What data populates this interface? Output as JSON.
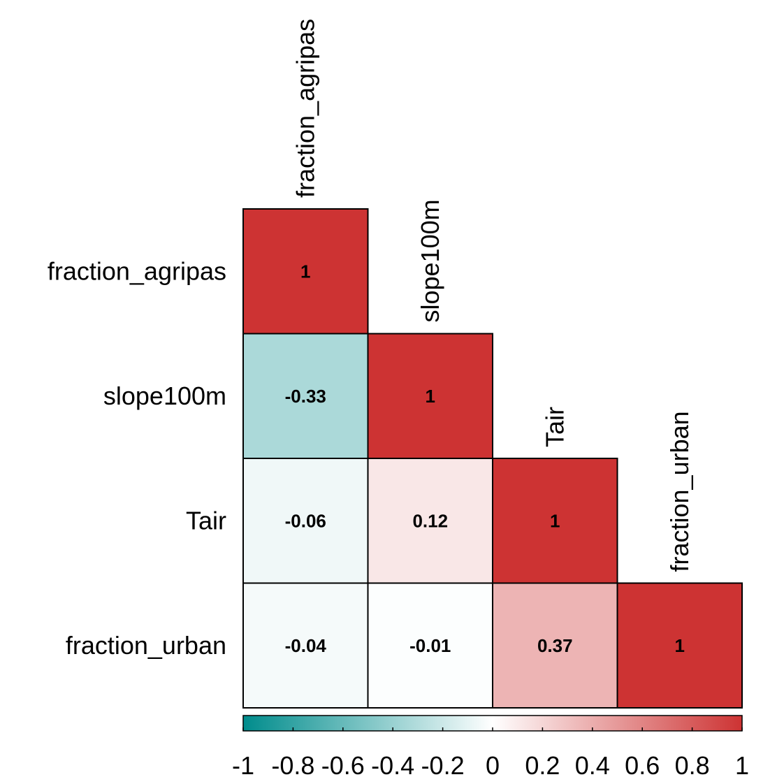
{
  "chart_data": {
    "type": "heatmap",
    "variables": [
      "fraction_agripas",
      "slope100m",
      "Tair",
      "fraction_urban"
    ],
    "matrix": [
      [
        1,
        null,
        null,
        null
      ],
      [
        -0.33,
        1,
        null,
        null
      ],
      [
        -0.06,
        0.12,
        1,
        null
      ],
      [
        -0.04,
        -0.01,
        0.37,
        1
      ]
    ],
    "value_labels": [
      [
        "1",
        "",
        "",
        ""
      ],
      [
        "-0.33",
        "1",
        "",
        ""
      ],
      [
        "-0.06",
        "0.12",
        "1",
        ""
      ],
      [
        "-0.04",
        "-0.01",
        "0.37",
        "1"
      ]
    ],
    "triangle": "lower",
    "colorbar": {
      "range": [
        -1,
        1
      ],
      "ticks": [
        -1,
        -0.8,
        -0.6,
        -0.4,
        -0.2,
        0,
        0.2,
        0.4,
        0.6,
        0.8,
        1
      ],
      "tick_labels": [
        "-1",
        "-0.8",
        "-0.6",
        "-0.4",
        "-0.2",
        "0",
        "0.2",
        "0.4",
        "0.6",
        "0.8",
        "1"
      ],
      "low_color": "#008C8C",
      "mid_color": "#FFFFFF",
      "high_color": "#CD3333",
      "placement": "bottom"
    }
  }
}
